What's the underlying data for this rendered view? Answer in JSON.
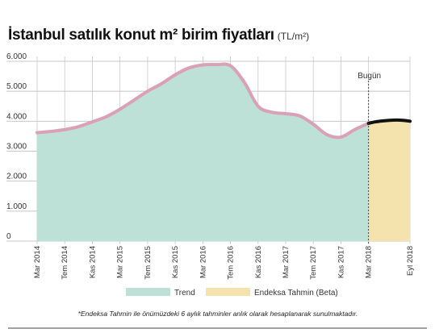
{
  "title": "İstanbul satılık konut m² birim fiyatları",
  "unit": "(TL/m²)",
  "footnote": "*Endeksa Tahmin ile önümüzdeki 6 aylık tahminler anlık olarak hesaplanarak sunulmaktadır.",
  "today_label": "Bugün",
  "colors": {
    "trend_fill": "#bde0d7",
    "trend_line": "#d9a0b6",
    "forecast_fill": "#f4e3ac",
    "forecast_line": "#111111",
    "grid": "#c8c8c8",
    "text": "#333333"
  },
  "chart_data": {
    "type": "area",
    "title": "İstanbul satılık konut m² birim fiyatları",
    "subtitle": "(TL/m²)",
    "xlabel": "",
    "ylabel": "",
    "ylim": [
      0,
      6000
    ],
    "y_ticks": [
      0,
      1000,
      2000,
      3000,
      4000,
      5000,
      6000
    ],
    "y_tick_labels": [
      "0",
      "1.000",
      "2.000",
      "3.000",
      "4.000",
      "5.000",
      "6.000"
    ],
    "x_tick_labels": [
      "Mar 2014",
      "Tem 2014",
      "Kas 2014",
      "Mar 2015",
      "Tem 2015",
      "Kas 2015",
      "Mar 2016",
      "Tem 2016",
      "Kas 2016",
      "Mar 2017",
      "Tem 2017",
      "Kas 2017",
      "Mar 2018",
      "Eyl 2018"
    ],
    "x_tick_dates": [
      "2014-03",
      "2014-07",
      "2014-11",
      "2015-03",
      "2015-07",
      "2015-11",
      "2016-03",
      "2016-07",
      "2016-11",
      "2017-03",
      "2017-07",
      "2017-11",
      "2018-03",
      "2018-09"
    ],
    "x_range": [
      "2014-03",
      "2018-09"
    ],
    "grid": true,
    "legend_position": "bottom-center",
    "marker": {
      "label": "Bugün",
      "x": "2018-03"
    },
    "series": [
      {
        "name": "Trend",
        "x": [
          "2014-03",
          "2014-05",
          "2014-07",
          "2014-09",
          "2014-11",
          "2015-01",
          "2015-03",
          "2015-05",
          "2015-07",
          "2015-09",
          "2015-11",
          "2016-01",
          "2016-03",
          "2016-05",
          "2016-07",
          "2016-09",
          "2016-11",
          "2017-01",
          "2017-03",
          "2017-05",
          "2017-07",
          "2017-09",
          "2017-11",
          "2018-01",
          "2018-03"
        ],
        "values": [
          3620,
          3660,
          3720,
          3820,
          3980,
          4150,
          4400,
          4700,
          5000,
          5250,
          5550,
          5780,
          5880,
          5890,
          5850,
          5300,
          4500,
          4300,
          4250,
          4180,
          3900,
          3550,
          3470,
          3720,
          3930
        ]
      },
      {
        "name": "Endeksa Tahmin (Beta)",
        "x": [
          "2018-03",
          "2018-04",
          "2018-05",
          "2018-06",
          "2018-07",
          "2018-08",
          "2018-09"
        ],
        "values": [
          3930,
          3980,
          4010,
          4030,
          4040,
          4030,
          4000
        ]
      }
    ]
  }
}
